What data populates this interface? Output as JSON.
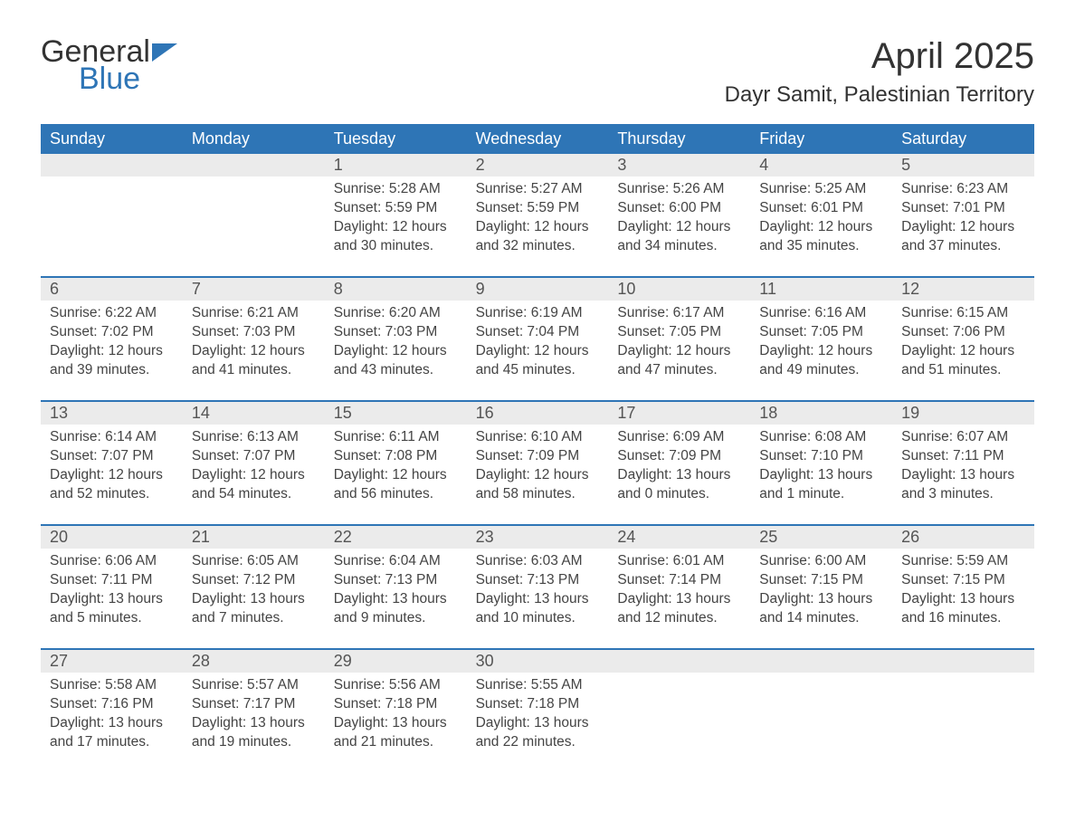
{
  "logo": {
    "part1": "General",
    "part2": "Blue"
  },
  "title": "April 2025",
  "location": "Dayr Samit, Palestinian Territory",
  "colors": {
    "header_bg": "#2e75b6",
    "header_text": "#ffffff",
    "daynum_bg": "#ebebeb",
    "rule": "#2e75b6",
    "body_text": "#444444",
    "page_bg": "#ffffff"
  },
  "weekdays": [
    "Sunday",
    "Monday",
    "Tuesday",
    "Wednesday",
    "Thursday",
    "Friday",
    "Saturday"
  ],
  "weeks": [
    {
      "days": [
        {
          "n": "",
          "sunrise": "",
          "sunset": "",
          "daylight": ""
        },
        {
          "n": "",
          "sunrise": "",
          "sunset": "",
          "daylight": ""
        },
        {
          "n": "1",
          "sunrise": "Sunrise: 5:28 AM",
          "sunset": "Sunset: 5:59 PM",
          "daylight": "Daylight: 12 hours and 30 minutes."
        },
        {
          "n": "2",
          "sunrise": "Sunrise: 5:27 AM",
          "sunset": "Sunset: 5:59 PM",
          "daylight": "Daylight: 12 hours and 32 minutes."
        },
        {
          "n": "3",
          "sunrise": "Sunrise: 5:26 AM",
          "sunset": "Sunset: 6:00 PM",
          "daylight": "Daylight: 12 hours and 34 minutes."
        },
        {
          "n": "4",
          "sunrise": "Sunrise: 5:25 AM",
          "sunset": "Sunset: 6:01 PM",
          "daylight": "Daylight: 12 hours and 35 minutes."
        },
        {
          "n": "5",
          "sunrise": "Sunrise: 6:23 AM",
          "sunset": "Sunset: 7:01 PM",
          "daylight": "Daylight: 12 hours and 37 minutes."
        }
      ]
    },
    {
      "days": [
        {
          "n": "6",
          "sunrise": "Sunrise: 6:22 AM",
          "sunset": "Sunset: 7:02 PM",
          "daylight": "Daylight: 12 hours and 39 minutes."
        },
        {
          "n": "7",
          "sunrise": "Sunrise: 6:21 AM",
          "sunset": "Sunset: 7:03 PM",
          "daylight": "Daylight: 12 hours and 41 minutes."
        },
        {
          "n": "8",
          "sunrise": "Sunrise: 6:20 AM",
          "sunset": "Sunset: 7:03 PM",
          "daylight": "Daylight: 12 hours and 43 minutes."
        },
        {
          "n": "9",
          "sunrise": "Sunrise: 6:19 AM",
          "sunset": "Sunset: 7:04 PM",
          "daylight": "Daylight: 12 hours and 45 minutes."
        },
        {
          "n": "10",
          "sunrise": "Sunrise: 6:17 AM",
          "sunset": "Sunset: 7:05 PM",
          "daylight": "Daylight: 12 hours and 47 minutes."
        },
        {
          "n": "11",
          "sunrise": "Sunrise: 6:16 AM",
          "sunset": "Sunset: 7:05 PM",
          "daylight": "Daylight: 12 hours and 49 minutes."
        },
        {
          "n": "12",
          "sunrise": "Sunrise: 6:15 AM",
          "sunset": "Sunset: 7:06 PM",
          "daylight": "Daylight: 12 hours and 51 minutes."
        }
      ]
    },
    {
      "days": [
        {
          "n": "13",
          "sunrise": "Sunrise: 6:14 AM",
          "sunset": "Sunset: 7:07 PM",
          "daylight": "Daylight: 12 hours and 52 minutes."
        },
        {
          "n": "14",
          "sunrise": "Sunrise: 6:13 AM",
          "sunset": "Sunset: 7:07 PM",
          "daylight": "Daylight: 12 hours and 54 minutes."
        },
        {
          "n": "15",
          "sunrise": "Sunrise: 6:11 AM",
          "sunset": "Sunset: 7:08 PM",
          "daylight": "Daylight: 12 hours and 56 minutes."
        },
        {
          "n": "16",
          "sunrise": "Sunrise: 6:10 AM",
          "sunset": "Sunset: 7:09 PM",
          "daylight": "Daylight: 12 hours and 58 minutes."
        },
        {
          "n": "17",
          "sunrise": "Sunrise: 6:09 AM",
          "sunset": "Sunset: 7:09 PM",
          "daylight": "Daylight: 13 hours and 0 minutes."
        },
        {
          "n": "18",
          "sunrise": "Sunrise: 6:08 AM",
          "sunset": "Sunset: 7:10 PM",
          "daylight": "Daylight: 13 hours and 1 minute."
        },
        {
          "n": "19",
          "sunrise": "Sunrise: 6:07 AM",
          "sunset": "Sunset: 7:11 PM",
          "daylight": "Daylight: 13 hours and 3 minutes."
        }
      ]
    },
    {
      "days": [
        {
          "n": "20",
          "sunrise": "Sunrise: 6:06 AM",
          "sunset": "Sunset: 7:11 PM",
          "daylight": "Daylight: 13 hours and 5 minutes."
        },
        {
          "n": "21",
          "sunrise": "Sunrise: 6:05 AM",
          "sunset": "Sunset: 7:12 PM",
          "daylight": "Daylight: 13 hours and 7 minutes."
        },
        {
          "n": "22",
          "sunrise": "Sunrise: 6:04 AM",
          "sunset": "Sunset: 7:13 PM",
          "daylight": "Daylight: 13 hours and 9 minutes."
        },
        {
          "n": "23",
          "sunrise": "Sunrise: 6:03 AM",
          "sunset": "Sunset: 7:13 PM",
          "daylight": "Daylight: 13 hours and 10 minutes."
        },
        {
          "n": "24",
          "sunrise": "Sunrise: 6:01 AM",
          "sunset": "Sunset: 7:14 PM",
          "daylight": "Daylight: 13 hours and 12 minutes."
        },
        {
          "n": "25",
          "sunrise": "Sunrise: 6:00 AM",
          "sunset": "Sunset: 7:15 PM",
          "daylight": "Daylight: 13 hours and 14 minutes."
        },
        {
          "n": "26",
          "sunrise": "Sunrise: 5:59 AM",
          "sunset": "Sunset: 7:15 PM",
          "daylight": "Daylight: 13 hours and 16 minutes."
        }
      ]
    },
    {
      "days": [
        {
          "n": "27",
          "sunrise": "Sunrise: 5:58 AM",
          "sunset": "Sunset: 7:16 PM",
          "daylight": "Daylight: 13 hours and 17 minutes."
        },
        {
          "n": "28",
          "sunrise": "Sunrise: 5:57 AM",
          "sunset": "Sunset: 7:17 PM",
          "daylight": "Daylight: 13 hours and 19 minutes."
        },
        {
          "n": "29",
          "sunrise": "Sunrise: 5:56 AM",
          "sunset": "Sunset: 7:18 PM",
          "daylight": "Daylight: 13 hours and 21 minutes."
        },
        {
          "n": "30",
          "sunrise": "Sunrise: 5:55 AM",
          "sunset": "Sunset: 7:18 PM",
          "daylight": "Daylight: 13 hours and 22 minutes."
        },
        {
          "n": "",
          "sunrise": "",
          "sunset": "",
          "daylight": ""
        },
        {
          "n": "",
          "sunrise": "",
          "sunset": "",
          "daylight": ""
        },
        {
          "n": "",
          "sunrise": "",
          "sunset": "",
          "daylight": ""
        }
      ]
    }
  ]
}
